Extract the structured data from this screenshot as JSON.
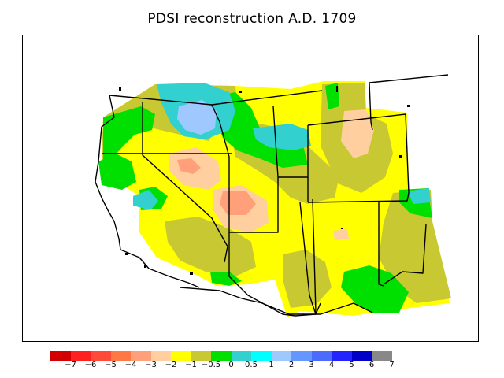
{
  "title": "PDSI reconstruction A.D. 1709",
  "colorbar": {
    "colors": [
      "#d20000",
      "#ff2020",
      "#ff4a3a",
      "#ff7744",
      "#ffa07a",
      "#ffcfa0",
      "#ffff00",
      "#c8c832",
      "#00e000",
      "#33d0d0",
      "#00ffff",
      "#9fc8ff",
      "#6496ff",
      "#4b6bff",
      "#2424ff",
      "#0000c8",
      "#888888"
    ],
    "tick_labels": [
      "−7",
      "−6",
      "−5",
      "−4",
      "−3",
      "−2",
      "−1",
      "−0.5",
      "0",
      "0.5",
      "1",
      "2",
      "3",
      "4",
      "5",
      "6",
      "7"
    ]
  }
}
